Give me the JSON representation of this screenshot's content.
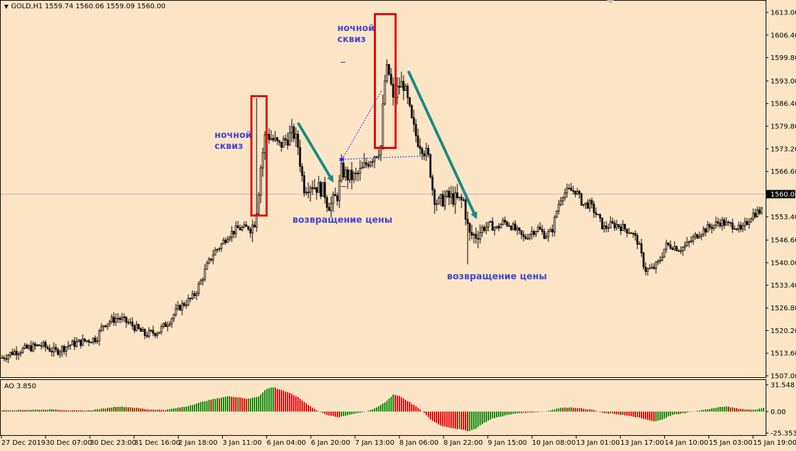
{
  "header": {
    "symbol": "GOLD,H1",
    "ohlc": "1559.74 1560.06 1559.09 1560.00"
  },
  "indicator": {
    "label": "AO 3.850"
  },
  "colors": {
    "background": "#fce5c5",
    "candle": "#000000",
    "annotation_box": "#e8000b",
    "trend_arrow": "#1a8a87",
    "annotation_text": "#4646d2",
    "ao_up": "#0a8a0a",
    "ao_down": "#e8000b",
    "current_price_line": "#b9b9b9",
    "dotted_line": "#1a1aff"
  },
  "annotations": {
    "night_squeeze_1": [
      "ночной",
      "сквиз"
    ],
    "night_squeeze_2": [
      "ночной",
      "сквиз"
    ],
    "price_return_1": "возвращение цены",
    "price_return_2": "возвращение цены",
    "small_dash": "_"
  },
  "chart_data": [
    {
      "type": "candlestick",
      "title": "GOLD,H1",
      "price_ticks": [
        "1613.00",
        "1606.40",
        "1599.80",
        "1593.00",
        "1586.40",
        "1579.80",
        "1573.20",
        "1566.60",
        "1560.00",
        "1553.40",
        "1546.60",
        "1540.00",
        "1533.40",
        "1526.80",
        "1520.20",
        "1513.60",
        "1507.00"
      ],
      "ylim": [
        1507.0,
        1613.0
      ],
      "current_price": "1560.00",
      "time_labels": [
        "27 Dec 2019",
        "30 Dec 07:00",
        "30 Dec 23:00",
        "31 Dec 16:00",
        "2 Jan 18:00",
        "3 Jan 11:00",
        "6 Jan 04:00",
        "6 Jan 20:00",
        "7 Jan 13:00",
        "8 Jan 06:00",
        "8 Jan 22:00",
        "9 Jan 15:00",
        "10 Jan 08:00",
        "13 Jan 01:00",
        "13 Jan 17:00",
        "14 Jan 10:00",
        "15 Jan 03:00",
        "15 Jan 19:00"
      ],
      "close_path": [
        [
          0,
          1512
        ],
        [
          20,
          1514
        ],
        [
          40,
          1515
        ],
        [
          60,
          1516
        ],
        [
          80,
          1514
        ],
        [
          100,
          1516
        ],
        [
          120,
          1517
        ],
        [
          140,
          1518
        ],
        [
          150,
          1522
        ],
        [
          170,
          1524
        ],
        [
          190,
          1522
        ],
        [
          210,
          1519
        ],
        [
          230,
          1520
        ],
        [
          245,
          1523
        ],
        [
          260,
          1527
        ],
        [
          280,
          1530
        ],
        [
          290,
          1534
        ],
        [
          300,
          1539
        ],
        [
          310,
          1543
        ],
        [
          320,
          1545
        ],
        [
          330,
          1548
        ],
        [
          345,
          1550
        ],
        [
          355,
          1550
        ],
        [
          368,
          1551
        ],
        [
          373,
          1557
        ],
        [
          378,
          1568
        ],
        [
          385,
          1578
        ],
        [
          395,
          1576
        ],
        [
          405,
          1574
        ],
        [
          415,
          1576
        ],
        [
          425,
          1578
        ],
        [
          432,
          1574
        ],
        [
          440,
          1562
        ],
        [
          450,
          1563
        ],
        [
          460,
          1562
        ],
        [
          470,
          1561
        ],
        [
          475,
          1557
        ],
        [
          480,
          1557
        ],
        [
          490,
          1560
        ],
        [
          495,
          1567
        ],
        [
          505,
          1565
        ],
        [
          515,
          1565
        ],
        [
          525,
          1567
        ],
        [
          535,
          1570
        ],
        [
          545,
          1572
        ],
        [
          552,
          1574
        ],
        [
          557,
          1592
        ],
        [
          562,
          1597
        ],
        [
          566,
          1593
        ],
        [
          570,
          1587
        ],
        [
          575,
          1590
        ],
        [
          580,
          1592
        ],
        [
          585,
          1592
        ],
        [
          592,
          1586
        ],
        [
          598,
          1580
        ],
        [
          605,
          1576
        ],
        [
          612,
          1574
        ],
        [
          622,
          1570
        ],
        [
          628,
          1560
        ],
        [
          635,
          1557
        ],
        [
          645,
          1559
        ],
        [
          655,
          1559
        ],
        [
          665,
          1558
        ],
        [
          672,
          1558
        ],
        [
          680,
          1548
        ],
        [
          690,
          1548
        ],
        [
          700,
          1550
        ],
        [
          710,
          1551
        ],
        [
          720,
          1550
        ],
        [
          730,
          1552
        ],
        [
          740,
          1551
        ],
        [
          750,
          1549
        ],
        [
          760,
          1547
        ],
        [
          770,
          1549
        ],
        [
          780,
          1550
        ],
        [
          790,
          1548
        ],
        [
          800,
          1549
        ],
        [
          808,
          1556
        ],
        [
          815,
          1560
        ],
        [
          825,
          1561
        ],
        [
          835,
          1561
        ],
        [
          845,
          1557
        ],
        [
          855,
          1557
        ],
        [
          865,
          1554
        ],
        [
          875,
          1550
        ],
        [
          885,
          1551
        ],
        [
          895,
          1551
        ],
        [
          905,
          1550
        ],
        [
          915,
          1549
        ],
        [
          925,
          1546
        ],
        [
          935,
          1538
        ],
        [
          945,
          1538
        ],
        [
          955,
          1540
        ],
        [
          965,
          1545
        ],
        [
          975,
          1545
        ],
        [
          985,
          1544
        ],
        [
          995,
          1545
        ],
        [
          1005,
          1547
        ],
        [
          1015,
          1549
        ],
        [
          1025,
          1550
        ],
        [
          1035,
          1551
        ],
        [
          1045,
          1552
        ],
        [
          1055,
          1551
        ],
        [
          1065,
          1551
        ],
        [
          1075,
          1549
        ],
        [
          1080,
          1551
        ],
        [
          1090,
          1554
        ],
        [
          1100,
          1555
        ],
        [
          1104,
          1555
        ]
      ]
    },
    {
      "type": "bar",
      "title": "AO 3.850",
      "ticks": [
        "31.548",
        "0.00",
        "-25.353"
      ],
      "ylim": [
        -25.353,
        31.548
      ],
      "path": [
        [
          0,
          1.5
        ],
        [
          40,
          2
        ],
        [
          80,
          2.5
        ],
        [
          110,
          1
        ],
        [
          130,
          1.5
        ],
        [
          150,
          3.5
        ],
        [
          170,
          6
        ],
        [
          190,
          5
        ],
        [
          215,
          2.5
        ],
        [
          240,
          2
        ],
        [
          270,
          6
        ],
        [
          300,
          13
        ],
        [
          330,
          18
        ],
        [
          345,
          17
        ],
        [
          360,
          15
        ],
        [
          375,
          18
        ],
        [
          385,
          26
        ],
        [
          395,
          29
        ],
        [
          410,
          25
        ],
        [
          430,
          18
        ],
        [
          445,
          9
        ],
        [
          460,
          1
        ],
        [
          475,
          -4
        ],
        [
          490,
          -7
        ],
        [
          510,
          -3
        ],
        [
          530,
          0
        ],
        [
          545,
          4
        ],
        [
          560,
          12
        ],
        [
          570,
          20
        ],
        [
          580,
          18
        ],
        [
          592,
          12
        ],
        [
          605,
          5
        ],
        [
          615,
          -2
        ],
        [
          625,
          -10
        ],
        [
          640,
          -17
        ],
        [
          660,
          -20
        ],
        [
          680,
          -23
        ],
        [
          690,
          -20
        ],
        [
          700,
          -14
        ],
        [
          715,
          -8
        ],
        [
          730,
          -5
        ],
        [
          750,
          -2
        ],
        [
          770,
          -1
        ],
        [
          790,
          0
        ],
        [
          810,
          4
        ],
        [
          825,
          5
        ],
        [
          840,
          4
        ],
        [
          860,
          2
        ],
        [
          875,
          -2
        ],
        [
          895,
          -3
        ],
        [
          910,
          -5
        ],
        [
          925,
          -7
        ],
        [
          940,
          -10
        ],
        [
          950,
          -12
        ],
        [
          960,
          -9
        ],
        [
          975,
          -4
        ],
        [
          990,
          -2
        ],
        [
          1005,
          0
        ],
        [
          1020,
          2
        ],
        [
          1035,
          4
        ],
        [
          1050,
          6
        ],
        [
          1060,
          5
        ],
        [
          1075,
          3
        ],
        [
          1090,
          2
        ],
        [
          1100,
          3
        ],
        [
          1107,
          4
        ]
      ]
    }
  ]
}
